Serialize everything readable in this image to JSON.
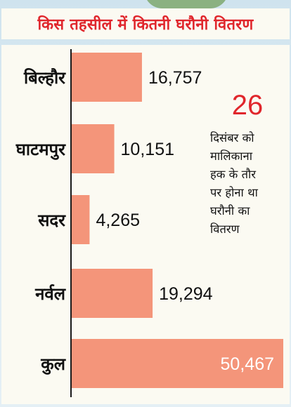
{
  "chart_data": {
    "type": "bar",
    "orientation": "horizontal",
    "title": "किस तहसील में कितनी घरौनी वितरण",
    "categories": [
      "बिल्हौर",
      "घाटमपुर",
      "सदर",
      "नर्वल",
      "कुल"
    ],
    "values": [
      16757,
      10151,
      4265,
      19294,
      50467
    ],
    "value_labels": [
      "16,757",
      "10,151",
      "4,265",
      "19,294",
      "50,467"
    ],
    "xlim": [
      0,
      50467
    ],
    "grid": false,
    "bar_color": "#f4957a"
  },
  "annotation": {
    "number": "26",
    "text": "दिसंबर को\nमालिकाना\nहक के तौर\nपर होना था\nघरौनी का\nवितरण"
  },
  "colors": {
    "title": "#e0262c",
    "axis": "#1a1a1a",
    "text": "#111111"
  }
}
